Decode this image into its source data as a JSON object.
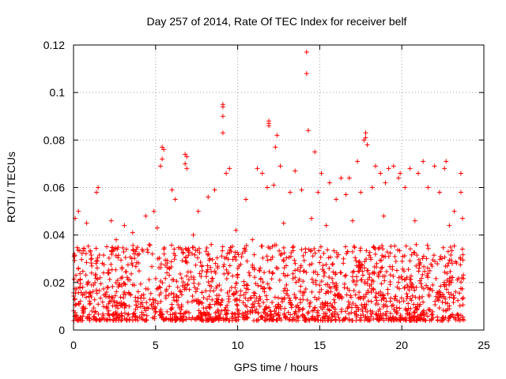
{
  "chart_data": {
    "type": "scatter",
    "title": "Day 257 of 2014, Rate Of TEC Index for receiver belf",
    "xlabel": "GPS time / hours",
    "ylabel": "ROTI / TECUs",
    "xlim": [
      0,
      25
    ],
    "ylim": [
      0,
      0.12
    ],
    "xticks": [
      0,
      5,
      10,
      15,
      20,
      25
    ],
    "yticks": [
      0,
      0.02,
      0.04,
      0.06,
      0.08,
      0.1,
      0.12
    ],
    "xtick_labels": [
      "0",
      "5",
      "10",
      "15",
      "20",
      "25"
    ],
    "ytick_labels": [
      "0",
      "0.02",
      "0.04",
      "0.06",
      "0.08",
      "0.1",
      "0.12"
    ],
    "grid": true,
    "marker": "+",
    "color": "#ff0000",
    "series": [
      {
        "name": "ROTI",
        "points": [
          [
            14.2,
            0.117
          ],
          [
            14.2,
            0.108
          ],
          [
            14.3,
            0.084
          ],
          [
            9.1,
            0.095
          ],
          [
            9.1,
            0.094
          ],
          [
            9.1,
            0.09
          ],
          [
            9.1,
            0.083
          ],
          [
            11.9,
            0.088
          ],
          [
            11.9,
            0.087
          ],
          [
            11.9,
            0.086
          ],
          [
            12.4,
            0.082
          ],
          [
            12.3,
            0.077
          ],
          [
            17.8,
            0.083
          ],
          [
            17.8,
            0.081
          ],
          [
            17.7,
            0.08
          ],
          [
            17.9,
            0.078
          ],
          [
            5.4,
            0.077
          ],
          [
            5.5,
            0.076
          ],
          [
            5.4,
            0.072
          ],
          [
            5.3,
            0.069
          ],
          [
            6.8,
            0.074
          ],
          [
            6.9,
            0.073
          ],
          [
            6.8,
            0.07
          ],
          [
            6.9,
            0.068
          ],
          [
            14.7,
            0.075
          ],
          [
            21.3,
            0.071
          ],
          [
            22.0,
            0.069
          ],
          [
            22.7,
            0.071
          ],
          [
            22.6,
            0.068
          ],
          [
            23.6,
            0.066
          ],
          [
            23.6,
            0.058
          ],
          [
            9.5,
            0.068
          ],
          [
            9.3,
            0.066
          ],
          [
            11.2,
            0.068
          ],
          [
            11.5,
            0.066
          ],
          [
            12.6,
            0.069
          ],
          [
            13.5,
            0.067
          ],
          [
            15.1,
            0.066
          ],
          [
            16.3,
            0.064
          ],
          [
            16.8,
            0.064
          ],
          [
            17.3,
            0.071
          ],
          [
            18.4,
            0.069
          ],
          [
            18.7,
            0.066
          ],
          [
            19.2,
            0.068
          ],
          [
            19.5,
            0.069
          ],
          [
            19.9,
            0.066
          ],
          [
            20.5,
            0.068
          ],
          [
            21.0,
            0.066
          ],
          [
            1.5,
            0.06
          ],
          [
            1.4,
            0.058
          ],
          [
            0.3,
            0.05
          ],
          [
            0.1,
            0.047
          ],
          [
            0.8,
            0.045
          ],
          [
            2.3,
            0.046
          ],
          [
            3.1,
            0.044
          ],
          [
            4.4,
            0.048
          ],
          [
            4.9,
            0.05
          ],
          [
            6.0,
            0.059
          ],
          [
            6.2,
            0.055
          ],
          [
            7.6,
            0.05
          ],
          [
            8.2,
            0.056
          ],
          [
            8.6,
            0.059
          ],
          [
            10.5,
            0.055
          ],
          [
            11.8,
            0.06
          ],
          [
            12.2,
            0.061
          ],
          [
            13.2,
            0.058
          ],
          [
            13.9,
            0.059
          ],
          [
            14.9,
            0.058
          ],
          [
            15.6,
            0.062
          ],
          [
            16.0,
            0.055
          ],
          [
            16.6,
            0.057
          ],
          [
            17.5,
            0.058
          ],
          [
            18.2,
            0.06
          ],
          [
            19.0,
            0.062
          ],
          [
            19.8,
            0.064
          ],
          [
            20.2,
            0.06
          ],
          [
            21.6,
            0.06
          ],
          [
            22.3,
            0.058
          ],
          [
            23.2,
            0.05
          ],
          [
            23.7,
            0.047
          ],
          [
            2.6,
            0.038
          ],
          [
            3.6,
            0.041
          ],
          [
            5.1,
            0.043
          ],
          [
            7.3,
            0.04
          ],
          [
            9.9,
            0.042
          ],
          [
            10.9,
            0.038
          ],
          [
            12.8,
            0.045
          ],
          [
            14.5,
            0.047
          ],
          [
            15.4,
            0.044
          ],
          [
            17.0,
            0.046
          ],
          [
            18.9,
            0.048
          ],
          [
            20.8,
            0.046
          ],
          [
            22.9,
            0.044
          ]
        ]
      }
    ],
    "dense_band": {
      "x_range": [
        0,
        23.8
      ],
      "y_low": 0.004,
      "y_high": 0.036,
      "count": 1800
    }
  }
}
